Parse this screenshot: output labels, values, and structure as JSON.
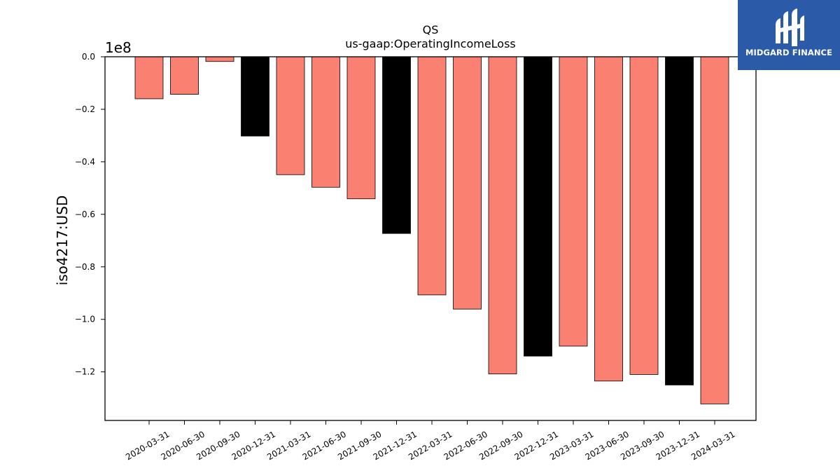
{
  "brand": {
    "name": "MIDGARD FINANCE",
    "bg_color": "#2b5aa8",
    "icon": "midgard-finance-logo-icon"
  },
  "chart_data": {
    "type": "bar",
    "title": "QS",
    "subtitle": "us-gaap:OperatingIncomeLoss",
    "xlabel": "",
    "ylabel": "iso4217:USD",
    "y_offset_label": "1e8",
    "y_scale": 100000000,
    "ylim": [
      -1.385,
      0.0
    ],
    "yticks": [
      0.0,
      -0.2,
      -0.4,
      -0.6,
      -0.8,
      -1.0,
      -1.2
    ],
    "ytick_labels": [
      "0.0",
      "−0.2",
      "−0.4",
      "−0.6",
      "−0.8",
      "−1.0",
      "−1.2"
    ],
    "grid": false,
    "categories": [
      "2020-03-31",
      "2020-06-30",
      "2020-09-30",
      "2020-12-31",
      "2021-03-31",
      "2021-06-30",
      "2021-09-30",
      "2021-12-31",
      "2022-03-31",
      "2022-06-30",
      "2022-09-30",
      "2022-12-31",
      "2023-03-31",
      "2023-06-30",
      "2023-09-30",
      "2023-12-31",
      "2024-03-31"
    ],
    "values": [
      -0.16,
      -0.143,
      -0.018,
      -0.302,
      -0.449,
      -0.497,
      -0.541,
      -0.673,
      -0.907,
      -0.961,
      -1.208,
      -1.14,
      -1.102,
      -1.235,
      -1.21,
      -1.25,
      -1.322
    ],
    "colors": {
      "quarter": "#fa8072",
      "year_end": "#000000",
      "edge": "#000000"
    },
    "year_end_categories": [
      "2020-12-31",
      "2021-12-31",
      "2022-12-31",
      "2023-12-31"
    ]
  }
}
